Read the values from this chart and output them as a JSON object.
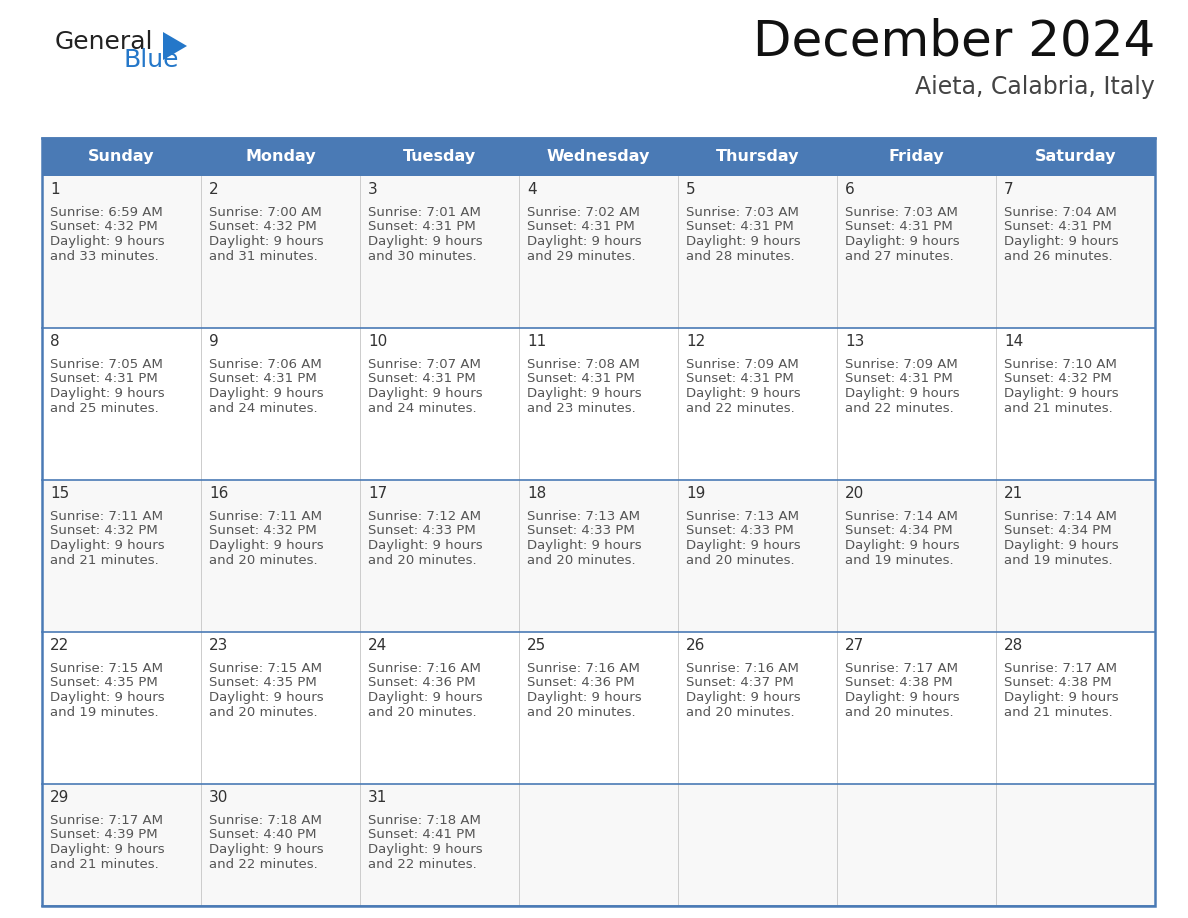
{
  "title": "December 2024",
  "subtitle": "Aieta, Calabria, Italy",
  "header_bg": "#4a7ab5",
  "header_text_color": "#FFFFFF",
  "days_of_week": [
    "Sunday",
    "Monday",
    "Tuesday",
    "Wednesday",
    "Thursday",
    "Friday",
    "Saturday"
  ],
  "cell_border_color": "#3a6090",
  "row_border_color": "#4a7ab5",
  "vert_border_color": "#cccccc",
  "cell_bg": "#FFFFFF",
  "alt_row_bg": "#f2f2f2",
  "day_num_color": "#333333",
  "info_text_color": "#555555",
  "logo_general_color": "#222222",
  "logo_blue_color": "#2477C9",
  "calendar_data": [
    [
      {
        "day": 1,
        "sunrise": "6:59 AM",
        "sunset": "4:32 PM",
        "dl1": "Daylight: 9 hours",
        "dl2": "and 33 minutes."
      },
      {
        "day": 2,
        "sunrise": "7:00 AM",
        "sunset": "4:32 PM",
        "dl1": "Daylight: 9 hours",
        "dl2": "and 31 minutes."
      },
      {
        "day": 3,
        "sunrise": "7:01 AM",
        "sunset": "4:31 PM",
        "dl1": "Daylight: 9 hours",
        "dl2": "and 30 minutes."
      },
      {
        "day": 4,
        "sunrise": "7:02 AM",
        "sunset": "4:31 PM",
        "dl1": "Daylight: 9 hours",
        "dl2": "and 29 minutes."
      },
      {
        "day": 5,
        "sunrise": "7:03 AM",
        "sunset": "4:31 PM",
        "dl1": "Daylight: 9 hours",
        "dl2": "and 28 minutes."
      },
      {
        "day": 6,
        "sunrise": "7:03 AM",
        "sunset": "4:31 PM",
        "dl1": "Daylight: 9 hours",
        "dl2": "and 27 minutes."
      },
      {
        "day": 7,
        "sunrise": "7:04 AM",
        "sunset": "4:31 PM",
        "dl1": "Daylight: 9 hours",
        "dl2": "and 26 minutes."
      }
    ],
    [
      {
        "day": 8,
        "sunrise": "7:05 AM",
        "sunset": "4:31 PM",
        "dl1": "Daylight: 9 hours",
        "dl2": "and 25 minutes."
      },
      {
        "day": 9,
        "sunrise": "7:06 AM",
        "sunset": "4:31 PM",
        "dl1": "Daylight: 9 hours",
        "dl2": "and 24 minutes."
      },
      {
        "day": 10,
        "sunrise": "7:07 AM",
        "sunset": "4:31 PM",
        "dl1": "Daylight: 9 hours",
        "dl2": "and 24 minutes."
      },
      {
        "day": 11,
        "sunrise": "7:08 AM",
        "sunset": "4:31 PM",
        "dl1": "Daylight: 9 hours",
        "dl2": "and 23 minutes."
      },
      {
        "day": 12,
        "sunrise": "7:09 AM",
        "sunset": "4:31 PM",
        "dl1": "Daylight: 9 hours",
        "dl2": "and 22 minutes."
      },
      {
        "day": 13,
        "sunrise": "7:09 AM",
        "sunset": "4:31 PM",
        "dl1": "Daylight: 9 hours",
        "dl2": "and 22 minutes."
      },
      {
        "day": 14,
        "sunrise": "7:10 AM",
        "sunset": "4:32 PM",
        "dl1": "Daylight: 9 hours",
        "dl2": "and 21 minutes."
      }
    ],
    [
      {
        "day": 15,
        "sunrise": "7:11 AM",
        "sunset": "4:32 PM",
        "dl1": "Daylight: 9 hours",
        "dl2": "and 21 minutes."
      },
      {
        "day": 16,
        "sunrise": "7:11 AM",
        "sunset": "4:32 PM",
        "dl1": "Daylight: 9 hours",
        "dl2": "and 20 minutes."
      },
      {
        "day": 17,
        "sunrise": "7:12 AM",
        "sunset": "4:33 PM",
        "dl1": "Daylight: 9 hours",
        "dl2": "and 20 minutes."
      },
      {
        "day": 18,
        "sunrise": "7:13 AM",
        "sunset": "4:33 PM",
        "dl1": "Daylight: 9 hours",
        "dl2": "and 20 minutes."
      },
      {
        "day": 19,
        "sunrise": "7:13 AM",
        "sunset": "4:33 PM",
        "dl1": "Daylight: 9 hours",
        "dl2": "and 20 minutes."
      },
      {
        "day": 20,
        "sunrise": "7:14 AM",
        "sunset": "4:34 PM",
        "dl1": "Daylight: 9 hours",
        "dl2": "and 19 minutes."
      },
      {
        "day": 21,
        "sunrise": "7:14 AM",
        "sunset": "4:34 PM",
        "dl1": "Daylight: 9 hours",
        "dl2": "and 19 minutes."
      }
    ],
    [
      {
        "day": 22,
        "sunrise": "7:15 AM",
        "sunset": "4:35 PM",
        "dl1": "Daylight: 9 hours",
        "dl2": "and 19 minutes."
      },
      {
        "day": 23,
        "sunrise": "7:15 AM",
        "sunset": "4:35 PM",
        "dl1": "Daylight: 9 hours",
        "dl2": "and 20 minutes."
      },
      {
        "day": 24,
        "sunrise": "7:16 AM",
        "sunset": "4:36 PM",
        "dl1": "Daylight: 9 hours",
        "dl2": "and 20 minutes."
      },
      {
        "day": 25,
        "sunrise": "7:16 AM",
        "sunset": "4:36 PM",
        "dl1": "Daylight: 9 hours",
        "dl2": "and 20 minutes."
      },
      {
        "day": 26,
        "sunrise": "7:16 AM",
        "sunset": "4:37 PM",
        "dl1": "Daylight: 9 hours",
        "dl2": "and 20 minutes."
      },
      {
        "day": 27,
        "sunrise": "7:17 AM",
        "sunset": "4:38 PM",
        "dl1": "Daylight: 9 hours",
        "dl2": "and 20 minutes."
      },
      {
        "day": 28,
        "sunrise": "7:17 AM",
        "sunset": "4:38 PM",
        "dl1": "Daylight: 9 hours",
        "dl2": "and 21 minutes."
      }
    ],
    [
      {
        "day": 29,
        "sunrise": "7:17 AM",
        "sunset": "4:39 PM",
        "dl1": "Daylight: 9 hours",
        "dl2": "and 21 minutes."
      },
      {
        "day": 30,
        "sunrise": "7:18 AM",
        "sunset": "4:40 PM",
        "dl1": "Daylight: 9 hours",
        "dl2": "and 22 minutes."
      },
      {
        "day": 31,
        "sunrise": "7:18 AM",
        "sunset": "4:41 PM",
        "dl1": "Daylight: 9 hours",
        "dl2": "and 22 minutes."
      },
      null,
      null,
      null,
      null
    ]
  ],
  "fig_width": 11.88,
  "fig_height": 9.18,
  "dpi": 100
}
